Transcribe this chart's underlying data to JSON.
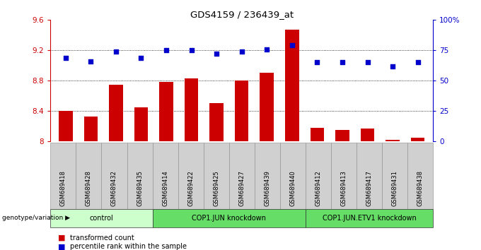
{
  "title": "GDS4159 / 236439_at",
  "samples": [
    "GSM689418",
    "GSM689428",
    "GSM689432",
    "GSM689435",
    "GSM689414",
    "GSM689422",
    "GSM689425",
    "GSM689427",
    "GSM689439",
    "GSM689440",
    "GSM689412",
    "GSM689413",
    "GSM689417",
    "GSM689431",
    "GSM689438"
  ],
  "bar_values": [
    8.4,
    8.33,
    8.75,
    8.45,
    8.78,
    8.83,
    8.5,
    8.8,
    8.9,
    9.47,
    8.18,
    8.15,
    8.17,
    8.02,
    8.05
  ],
  "dot_values": [
    69,
    66,
    74,
    69,
    75,
    75,
    72,
    74,
    76,
    79,
    65,
    65,
    65,
    62,
    65
  ],
  "bar_color": "#cc0000",
  "dot_color": "#0000cc",
  "ylim_left": [
    8.0,
    9.6
  ],
  "ylim_right": [
    0,
    100
  ],
  "yticks_left": [
    8.0,
    8.4,
    8.8,
    9.2,
    9.6
  ],
  "ytick_labels_left": [
    "8",
    "8.4",
    "8.8",
    "9.2",
    "9.6"
  ],
  "yticks_right": [
    0,
    25,
    50,
    75,
    100
  ],
  "ytick_labels_right": [
    "0",
    "25",
    "50",
    "75",
    "100%"
  ],
  "grid_yticks": [
    8.4,
    8.8,
    9.2
  ],
  "groups": [
    {
      "label": "control",
      "start": 0,
      "end": 4,
      "color": "#ccffcc"
    },
    {
      "label": "COP1.JUN knockdown",
      "start": 4,
      "end": 10,
      "color": "#66dd66"
    },
    {
      "label": "COP1.JUN.ETV1 knockdown",
      "start": 10,
      "end": 15,
      "color": "#66dd66"
    }
  ],
  "genotype_label": "genotype/variation",
  "legend_bar_label": "transformed count",
  "legend_dot_label": "percentile rank within the sample",
  "sample_box_color": "#d0d0d0",
  "plot_bg_color": "#ffffff"
}
